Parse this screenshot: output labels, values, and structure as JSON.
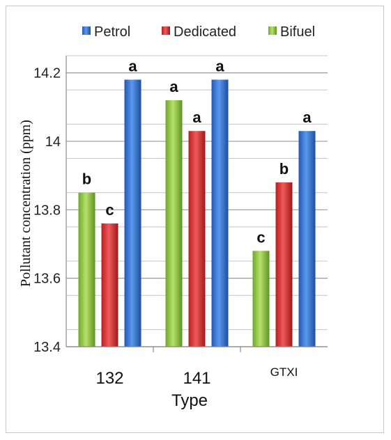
{
  "chart_data": {
    "type": "bar",
    "categories": [
      "132",
      "141",
      "GTXI"
    ],
    "series": [
      {
        "name": "Bifuel",
        "values": [
          13.85,
          14.12,
          13.68
        ],
        "labels": [
          "b",
          "a",
          "c"
        ],
        "color": "#8dc63f"
      },
      {
        "name": "Dedicated",
        "values": [
          13.76,
          14.03,
          13.88
        ],
        "labels": [
          "c",
          "a",
          "b"
        ],
        "color": "#d32f2f"
      },
      {
        "name": "Petrol",
        "values": [
          14.18,
          14.18,
          14.03
        ],
        "labels": [
          "a",
          "a",
          "a"
        ],
        "color": "#2f6fd0"
      }
    ],
    "legend_order": [
      "Petrol",
      "Dedicated",
      "Bifuel"
    ],
    "legend_position": "top",
    "yticks": [
      "13.4",
      "13.6",
      "13.8",
      "14",
      "14.2"
    ],
    "ylim": [
      13.4,
      14.25
    ],
    "xlabel": "Type",
    "ylabel": "Pollutant concentration (ppm)",
    "grid": true
  }
}
